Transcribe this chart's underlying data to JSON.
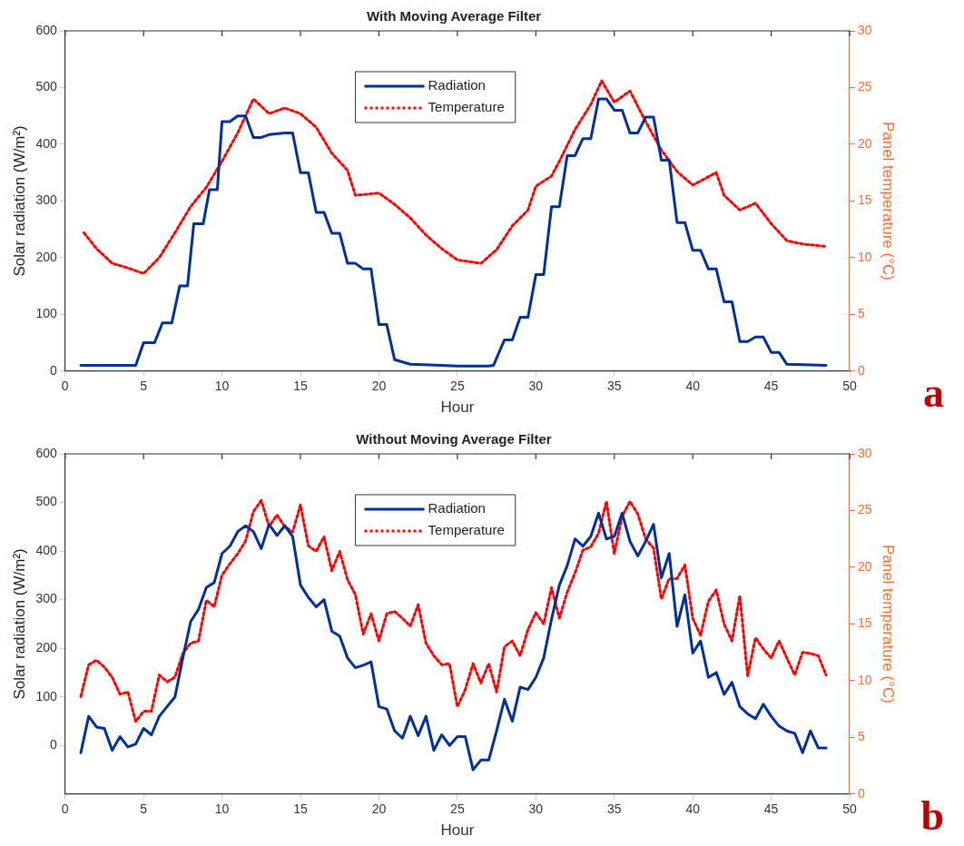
{
  "chart_data": [
    {
      "type": "line",
      "title": "With Moving Average Filter",
      "xlabel": "Hour",
      "ylabel": "Solar radiation (W/m²)",
      "y2label": "Panel temperature (°C)",
      "annotations": [
        "a"
      ],
      "legend": "top",
      "grid": false,
      "xlim": [
        0,
        50
      ],
      "xticks": [
        0,
        5,
        10,
        15,
        20,
        25,
        30,
        35,
        40,
        45,
        50
      ],
      "ylim": [
        0,
        600
      ],
      "yticks": [
        0,
        100,
        200,
        300,
        400,
        500,
        600
      ],
      "y2lim": [
        0,
        30
      ],
      "y2ticks": [
        0,
        5,
        10,
        15,
        20,
        25,
        30
      ],
      "series": [
        {
          "name": "Radiation",
          "color": "#00309a",
          "line_style": "solid",
          "x": [
            1,
            4.5,
            5,
            5.7,
            6.2,
            6.8,
            7.3,
            7.8,
            8.2,
            8.8,
            9.2,
            9.7,
            10,
            10.5,
            11,
            11.5,
            12,
            12.5,
            13,
            14,
            14.5,
            15,
            15.5,
            16,
            16.5,
            17,
            17.5,
            18,
            18.5,
            19,
            19.5,
            20,
            20.5,
            21,
            22,
            24,
            25,
            27,
            27.3,
            28,
            28.5,
            29,
            29.5,
            30,
            30.5,
            31,
            31.5,
            32,
            32.5,
            33,
            33.5,
            34,
            34.5,
            35,
            35.5,
            36,
            36.5,
            37,
            37.5,
            38,
            38.5,
            39,
            39.5,
            40,
            40.5,
            41,
            41.5,
            42,
            42.5,
            43,
            43.5,
            44,
            44.5,
            45,
            45.5,
            46,
            48.5
          ],
          "values": [
            10,
            10,
            50,
            50,
            85,
            85,
            150,
            150,
            260,
            260,
            320,
            320,
            440,
            440,
            450,
            450,
            412,
            412,
            417,
            420,
            420,
            350,
            350,
            280,
            280,
            243,
            243,
            190,
            190,
            180,
            180,
            82,
            82,
            20,
            12,
            10,
            9,
            9,
            10,
            55,
            55,
            95,
            95,
            170,
            170,
            290,
            290,
            380,
            380,
            410,
            410,
            480,
            480,
            460,
            460,
            420,
            420,
            448,
            448,
            372,
            372,
            262,
            262,
            213,
            213,
            180,
            180,
            122,
            122,
            52,
            52,
            60,
            60,
            33,
            33,
            12,
            10
          ]
        },
        {
          "name": "Temperature",
          "color": "#ff0000",
          "line_style": "dotted",
          "axis": "y2",
          "x": [
            1.2,
            2,
            3,
            4,
            5,
            6,
            7,
            8,
            9,
            10,
            11,
            12,
            13,
            14,
            15,
            16,
            17,
            18,
            18.5,
            20,
            21,
            22,
            23,
            24,
            25,
            26.5,
            27.5,
            28.5,
            29.5,
            30,
            31,
            31.5,
            32.5,
            33.5,
            34.2,
            35,
            36,
            37,
            38,
            39,
            40,
            41.5,
            42,
            43,
            44,
            45,
            46,
            47,
            48.5
          ],
          "values": [
            12.2,
            10.8,
            9.5,
            9.1,
            8.6,
            10,
            12.2,
            14.5,
            16.2,
            18.5,
            21,
            24,
            22.7,
            23.2,
            22.7,
            21.5,
            19.2,
            17.7,
            15.5,
            15.7,
            14.7,
            13.5,
            12,
            10.8,
            9.8,
            9.5,
            10.7,
            12.8,
            14.2,
            16.3,
            17.2,
            18.5,
            21.3,
            23.5,
            25.6,
            23.7,
            24.7,
            22,
            19.5,
            17.6,
            16.4,
            17.5,
            15.5,
            14.2,
            14.8,
            13,
            11.5,
            11.2,
            11
          ]
        }
      ]
    },
    {
      "type": "line",
      "title": "Without Moving Average Filter",
      "xlabel": "Hour",
      "ylabel": "Solar radiation (W/m²)",
      "y2label": "Panel temperature (°C)",
      "annotations": [
        "b"
      ],
      "legend": "top",
      "grid": false,
      "xlim": [
        0,
        50
      ],
      "xticks": [
        0,
        5,
        10,
        15,
        20,
        25,
        30,
        35,
        40,
        45,
        50
      ],
      "ylim": [
        -100,
        600
      ],
      "yticks": [
        0,
        100,
        200,
        300,
        400,
        500,
        600
      ],
      "y2lim": [
        0,
        30
      ],
      "y2ticks": [
        0,
        5,
        10,
        15,
        20,
        25,
        30
      ],
      "x": [
        1,
        1.5,
        2,
        2.5,
        3,
        3.5,
        4,
        4.5,
        5,
        5.5,
        6,
        6.5,
        7,
        7.5,
        8,
        8.5,
        9,
        9.5,
        10,
        10.5,
        11,
        11.5,
        12,
        12.5,
        13,
        13.5,
        14,
        14.5,
        15,
        15.5,
        16,
        16.5,
        17,
        17.5,
        18,
        18.5,
        19,
        19.5,
        20,
        20.5,
        21,
        21.5,
        22,
        22.5,
        23,
        23.5,
        24,
        24.5,
        25,
        25.5,
        26,
        26.5,
        27,
        27.5,
        28,
        28.5,
        29,
        29.5,
        30,
        30.5,
        31,
        31.5,
        32,
        32.5,
        33,
        33.5,
        34,
        34.5,
        35,
        35.5,
        36,
        36.5,
        37,
        37.5,
        38,
        38.5,
        39,
        39.5,
        40,
        40.5,
        41,
        41.5,
        42,
        42.5,
        43,
        43.5,
        44,
        44.5,
        45,
        45.5,
        46,
        46.5,
        47,
        47.5,
        48,
        48.5
      ],
      "series": [
        {
          "name": "Radiation",
          "color": "#00309a",
          "line_style": "solid",
          "values": [
            -15,
            60,
            38,
            35,
            -10,
            18,
            -3,
            3,
            35,
            22,
            60,
            80,
            100,
            180,
            255,
            280,
            325,
            335,
            395,
            410,
            440,
            452,
            440,
            405,
            455,
            432,
            452,
            430,
            330,
            305,
            285,
            300,
            235,
            225,
            180,
            160,
            165,
            172,
            80,
            75,
            30,
            15,
            60,
            20,
            60,
            -10,
            22,
            0,
            18,
            18,
            -50,
            -30,
            -30,
            30,
            95,
            50,
            120,
            115,
            140,
            180,
            260,
            330,
            370,
            425,
            410,
            430,
            478,
            425,
            430,
            478,
            420,
            390,
            420,
            455,
            345,
            395,
            245,
            310,
            190,
            215,
            140,
            150,
            105,
            130,
            80,
            65,
            55,
            85,
            60,
            40,
            30,
            25,
            -15,
            30,
            -5,
            -5
          ]
        },
        {
          "name": "Temperature",
          "color": "#ff0000",
          "line_style": "dotted",
          "axis": "y2",
          "values": [
            8.6,
            11.4,
            11.8,
            11.2,
            10.3,
            8.8,
            9,
            6.4,
            7.3,
            7.3,
            10.5,
            9.9,
            10.3,
            12.4,
            13.3,
            13.5,
            17.1,
            16.5,
            19.3,
            20.3,
            21.2,
            22.3,
            24.9,
            25.9,
            23.6,
            24.6,
            23.6,
            23.1,
            25.5,
            21.9,
            21.4,
            22.7,
            19.7,
            21.4,
            18.9,
            17.6,
            14.1,
            15.9,
            13.5,
            15.9,
            16.1,
            15.5,
            14.8,
            16.7,
            13.3,
            12.2,
            11.4,
            11.5,
            7.7,
            9.2,
            11.5,
            9.8,
            11.5,
            9,
            13,
            13.5,
            12.2,
            14.5,
            16,
            15,
            18.2,
            15.5,
            17.8,
            19.5,
            21.5,
            21.8,
            23,
            25.8,
            21.2,
            24.5,
            25.8,
            24.7,
            22.5,
            21.7,
            17.2,
            19,
            19,
            20.2,
            15.5,
            14,
            17,
            18,
            15,
            13.5,
            17.5,
            10.4,
            13.8,
            12.8,
            12,
            13.5,
            12,
            10.5,
            12.5,
            12.4,
            12.2,
            10.5
          ]
        }
      ]
    }
  ]
}
